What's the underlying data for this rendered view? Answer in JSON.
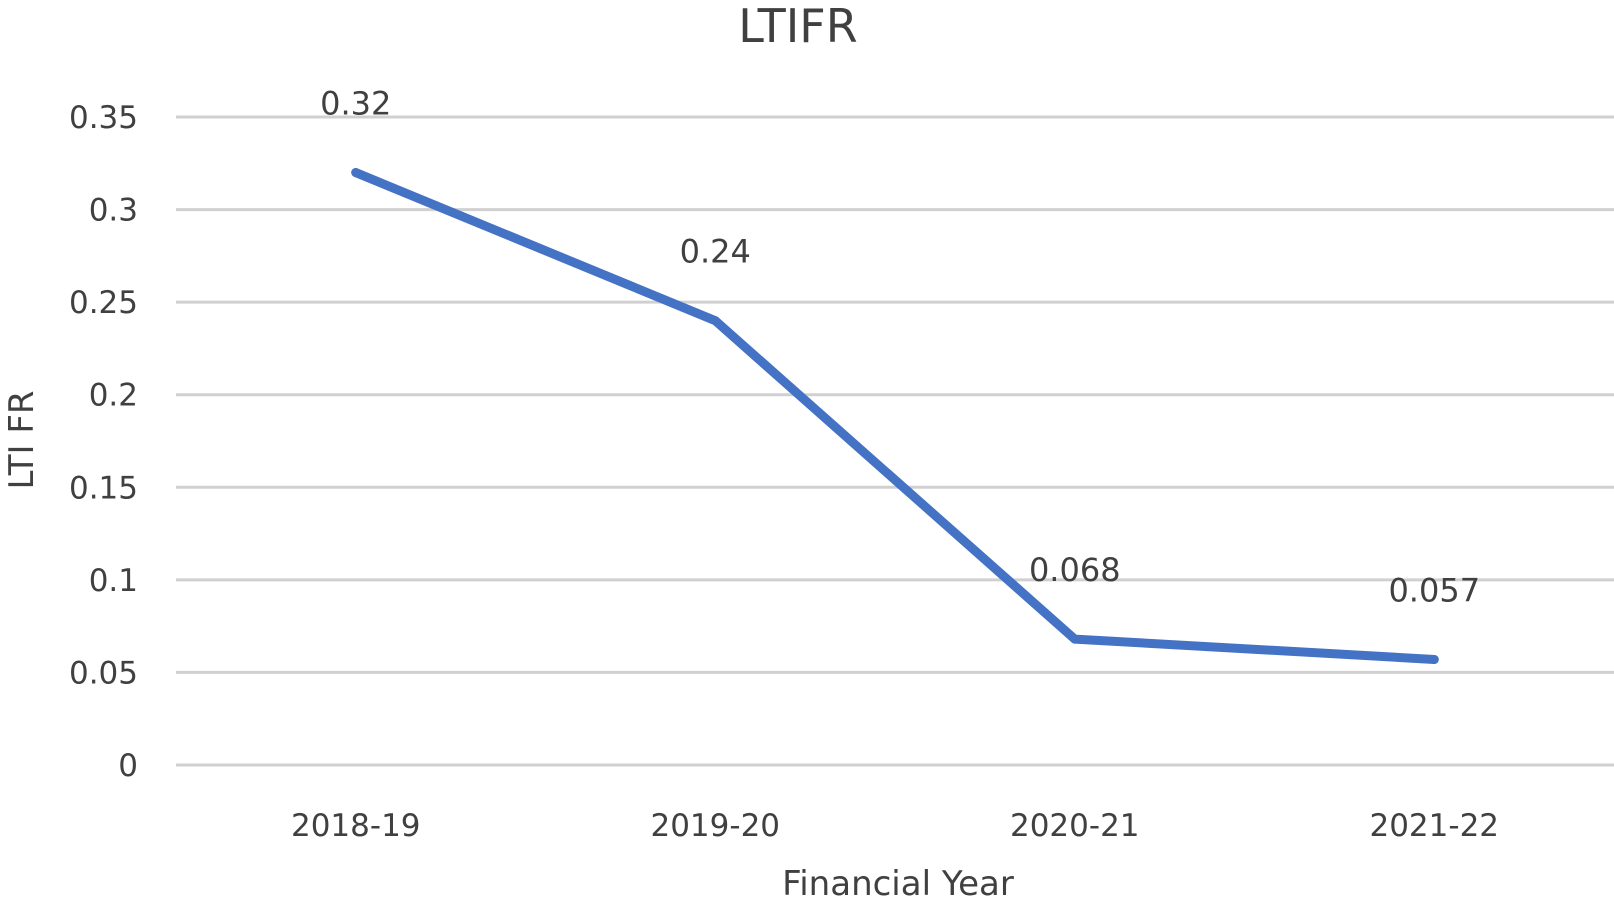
{
  "chart_data": {
    "type": "line",
    "title": "LTIFR",
    "xlabel": "Financial Year",
    "ylabel": "LTI FR",
    "categories": [
      "2018-19",
      "2019-20",
      "2020-21",
      "2021-22"
    ],
    "series": [
      {
        "values": [
          0.32,
          0.24,
          0.068,
          0.057
        ],
        "data_labels": [
          "0.32",
          "0.24",
          "0.068",
          "0.057"
        ],
        "color": "#4472c4"
      }
    ],
    "y_ticks": [
      "0",
      "0.05",
      "0.1",
      "0.15",
      "0.2",
      "0.25",
      "0.3",
      "0.35"
    ],
    "y_tick_values": [
      0,
      0.05,
      0.1,
      0.15,
      0.2,
      0.25,
      0.3,
      0.35
    ],
    "ylim": [
      0,
      0.35
    ],
    "grid": true,
    "legend": "none"
  }
}
